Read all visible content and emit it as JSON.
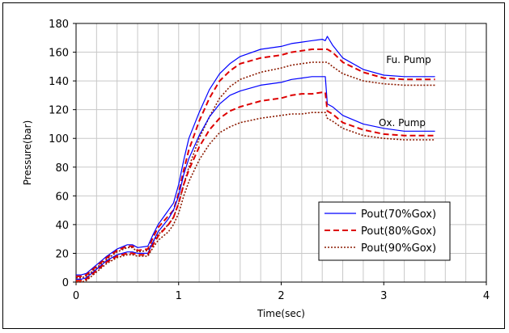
{
  "chart_data": {
    "type": "line",
    "title": "",
    "xlabel": "Time(sec)",
    "ylabel": "Pressure(bar)",
    "xlim": [
      0,
      4
    ],
    "ylim": [
      0,
      180
    ],
    "xticks": [
      0,
      1,
      2,
      3,
      4
    ],
    "yticks": [
      0,
      20,
      40,
      60,
      80,
      100,
      120,
      140,
      160,
      180
    ],
    "grid": true,
    "legend_position": "lower-right",
    "legend": [
      {
        "label": "Pout(70%Gox)",
        "color": "#0000ff",
        "style": "solid"
      },
      {
        "label": "Pout(80%Gox)",
        "color": "#dd0000",
        "style": "dashed"
      },
      {
        "label": "Pout(90%Gox)",
        "color": "#8b1a00",
        "style": "dotted"
      }
    ],
    "annotations": [
      "Fu. Pump",
      "Ox. Pump"
    ],
    "series": [
      {
        "group": "Fu. Pump",
        "legend_index": 0,
        "color": "#0000ff",
        "style": "solid",
        "x": [
          0,
          0.05,
          0.1,
          0.2,
          0.3,
          0.4,
          0.5,
          0.55,
          0.6,
          0.7,
          0.75,
          0.8,
          0.9,
          0.95,
          1.0,
          1.05,
          1.1,
          1.2,
          1.3,
          1.4,
          1.5,
          1.6,
          1.8,
          2.0,
          2.1,
          2.2,
          2.3,
          2.4,
          2.43,
          2.45,
          2.5,
          2.6,
          2.8,
          3.0,
          3.2,
          3.5
        ],
        "y": [
          5,
          5,
          6,
          12,
          18,
          23,
          26,
          26,
          24,
          25,
          33,
          40,
          50,
          55,
          68,
          85,
          100,
          118,
          134,
          145,
          152,
          157,
          162,
          164,
          166,
          167,
          168,
          169,
          168,
          171,
          165,
          156,
          148,
          144,
          143,
          143
        ]
      },
      {
        "group": "Fu. Pump",
        "legend_index": 1,
        "color": "#dd0000",
        "style": "dashed",
        "x": [
          0,
          0.05,
          0.1,
          0.2,
          0.3,
          0.4,
          0.5,
          0.55,
          0.6,
          0.7,
          0.75,
          0.8,
          0.9,
          0.95,
          1.0,
          1.05,
          1.1,
          1.2,
          1.3,
          1.4,
          1.5,
          1.6,
          1.8,
          2.0,
          2.1,
          2.2,
          2.3,
          2.4,
          2.45,
          2.5,
          2.6,
          2.8,
          3.0,
          3.2,
          3.5
        ],
        "y": [
          4,
          4,
          5,
          11,
          17,
          22,
          25,
          25,
          22,
          23,
          31,
          38,
          46,
          50,
          62,
          78,
          92,
          112,
          128,
          140,
          147,
          152,
          156,
          158,
          160,
          161,
          162,
          162,
          162,
          160,
          153,
          146,
          142,
          141,
          141
        ]
      },
      {
        "group": "Fu. Pump",
        "legend_index": 2,
        "color": "#8b1a00",
        "style": "dotted",
        "x": [
          0,
          0.05,
          0.1,
          0.2,
          0.3,
          0.4,
          0.5,
          0.55,
          0.6,
          0.7,
          0.75,
          0.8,
          0.9,
          0.95,
          1.0,
          1.05,
          1.1,
          1.2,
          1.3,
          1.4,
          1.5,
          1.6,
          1.8,
          2.0,
          2.1,
          2.2,
          2.3,
          2.4,
          2.45,
          2.5,
          2.6,
          2.8,
          3.0,
          3.2,
          3.5
        ],
        "y": [
          3,
          3,
          4,
          10,
          16,
          21,
          24,
          24,
          21,
          22,
          28,
          33,
          40,
          45,
          55,
          68,
          80,
          100,
          115,
          128,
          136,
          141,
          146,
          149,
          151,
          152,
          153,
          153,
          153,
          150,
          145,
          140,
          138,
          137,
          137
        ]
      },
      {
        "group": "Ox. Pump",
        "legend_index": 0,
        "color": "#0000ff",
        "style": "solid",
        "x": [
          0,
          0.05,
          0.1,
          0.2,
          0.3,
          0.4,
          0.5,
          0.55,
          0.6,
          0.7,
          0.75,
          0.8,
          0.9,
          0.95,
          1.0,
          1.05,
          1.1,
          1.2,
          1.3,
          1.4,
          1.5,
          1.6,
          1.8,
          2.0,
          2.1,
          2.2,
          2.3,
          2.4,
          2.43,
          2.45,
          2.5,
          2.6,
          2.8,
          3.0,
          3.2,
          3.5
        ],
        "y": [
          2,
          2,
          3,
          9,
          15,
          19,
          21,
          21,
          20,
          20,
          28,
          35,
          44,
          50,
          60,
          75,
          86,
          102,
          115,
          124,
          130,
          133,
          137,
          139,
          141,
          142,
          143,
          143,
          143,
          124,
          122,
          116,
          110,
          107,
          105,
          105
        ]
      },
      {
        "group": "Ox. Pump",
        "legend_index": 1,
        "color": "#dd0000",
        "style": "dashed",
        "x": [
          0,
          0.05,
          0.1,
          0.2,
          0.3,
          0.4,
          0.5,
          0.55,
          0.6,
          0.7,
          0.75,
          0.8,
          0.9,
          0.95,
          1.0,
          1.05,
          1.1,
          1.2,
          1.3,
          1.4,
          1.5,
          1.6,
          1.8,
          2.0,
          2.1,
          2.2,
          2.3,
          2.4,
          2.43,
          2.45,
          2.5,
          2.6,
          2.8,
          3.0,
          3.2,
          3.5
        ],
        "y": [
          1,
          1,
          2,
          8,
          14,
          18,
          20,
          20,
          19,
          19,
          26,
          32,
          40,
          45,
          55,
          68,
          78,
          94,
          106,
          114,
          119,
          122,
          126,
          128,
          130,
          131,
          131,
          132,
          132,
          119,
          117,
          111,
          106,
          103,
          102,
          102
        ]
      },
      {
        "group": "Ox. Pump",
        "legend_index": 2,
        "color": "#8b1a00",
        "style": "dotted",
        "x": [
          0,
          0.05,
          0.1,
          0.2,
          0.3,
          0.4,
          0.5,
          0.55,
          0.6,
          0.7,
          0.75,
          0.8,
          0.9,
          0.95,
          1.0,
          1.05,
          1.1,
          1.2,
          1.3,
          1.4,
          1.5,
          1.6,
          1.8,
          2.0,
          2.1,
          2.2,
          2.3,
          2.4,
          2.43,
          2.45,
          2.5,
          2.6,
          2.8,
          3.0,
          3.2,
          3.5
        ],
        "y": [
          0,
          0,
          1,
          7,
          13,
          17,
          19,
          19,
          18,
          18,
          24,
          29,
          35,
          40,
          48,
          60,
          70,
          85,
          96,
          104,
          108,
          111,
          114,
          116,
          117,
          117,
          118,
          118,
          118,
          114,
          112,
          107,
          102,
          100,
          99,
          99
        ]
      }
    ]
  }
}
